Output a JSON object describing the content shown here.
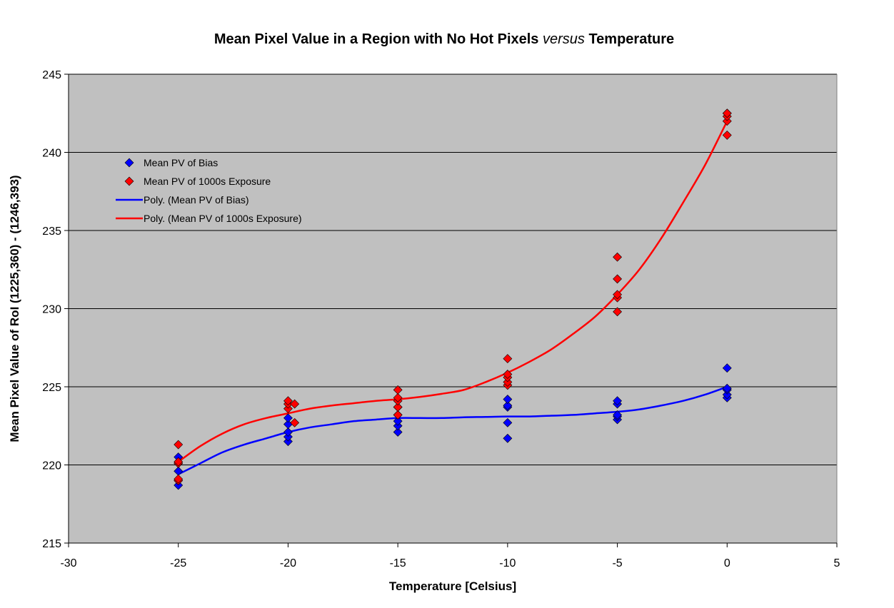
{
  "chart_data": {
    "type": "scatter",
    "title_parts": [
      "Mean Pixel Value in a Region with No Hot Pixels ",
      "versus",
      " Temperature"
    ],
    "xlabel": "Temperature [Celsius]",
    "ylabel": "Mean Pixel Value of RoI (1225,360) - (1246,393)",
    "xlim": [
      -30,
      5
    ],
    "ylim": [
      215,
      245
    ],
    "x_ticks": [
      -30,
      -25,
      -20,
      -15,
      -10,
      -5,
      0,
      5
    ],
    "y_ticks": [
      215,
      220,
      225,
      230,
      235,
      240,
      245
    ],
    "grid": "horizontal",
    "plot_background": "#c0c0c0",
    "legend_position": "top-left",
    "series": [
      {
        "name": "Mean PV of Bias",
        "kind": "markers",
        "marker": "diamond",
        "color": "#0000ff",
        "points": [
          [
            -25,
            218.7
          ],
          [
            -25,
            219.0
          ],
          [
            -25,
            219.6
          ],
          [
            -25,
            220.1
          ],
          [
            -25,
            220.5
          ],
          [
            -20,
            221.5
          ],
          [
            -20,
            221.8
          ],
          [
            -20,
            222.1
          ],
          [
            -20,
            222.6
          ],
          [
            -20,
            223.0
          ],
          [
            -15,
            222.1
          ],
          [
            -15,
            222.5
          ],
          [
            -15,
            222.8
          ],
          [
            -15,
            223.2
          ],
          [
            -15,
            223.7
          ],
          [
            -10,
            221.7
          ],
          [
            -10,
            222.7
          ],
          [
            -10,
            223.7
          ],
          [
            -10,
            223.8
          ],
          [
            -10,
            224.2
          ],
          [
            -5,
            222.9
          ],
          [
            -5,
            223.1
          ],
          [
            -5,
            223.2
          ],
          [
            -5,
            223.9
          ],
          [
            -5,
            224.1
          ],
          [
            0,
            224.3
          ],
          [
            0,
            224.5
          ],
          [
            0,
            224.8
          ],
          [
            0,
            224.9
          ],
          [
            0,
            226.2
          ]
        ]
      },
      {
        "name": "Mean PV of 1000s Exposure",
        "kind": "markers",
        "marker": "diamond",
        "color": "#ff0000",
        "points": [
          [
            -25,
            219.0
          ],
          [
            -25,
            219.1
          ],
          [
            -25,
            220.1
          ],
          [
            -25,
            220.2
          ],
          [
            -25,
            221.3
          ],
          [
            -20,
            223.6
          ],
          [
            -20,
            223.9
          ],
          [
            -20,
            224.1
          ],
          [
            -19.7,
            223.9
          ],
          [
            -19.7,
            222.7
          ],
          [
            -15,
            223.2
          ],
          [
            -15,
            223.7
          ],
          [
            -15,
            224.1
          ],
          [
            -15,
            224.3
          ],
          [
            -15,
            224.8
          ],
          [
            -10,
            225.1
          ],
          [
            -10,
            225.3
          ],
          [
            -10,
            225.6
          ],
          [
            -10,
            225.8
          ],
          [
            -10,
            226.8
          ],
          [
            -5,
            229.8
          ],
          [
            -5,
            230.7
          ],
          [
            -5,
            230.9
          ],
          [
            -5,
            231.9
          ],
          [
            -5,
            233.3
          ],
          [
            0,
            241.1
          ],
          [
            0,
            242.0
          ],
          [
            0,
            242.3
          ],
          [
            0,
            242.5
          ],
          [
            0,
            242.5
          ]
        ]
      },
      {
        "name": "Poly. (Mean PV of Bias)",
        "kind": "line",
        "color": "#0000ff",
        "points": [
          [
            -25,
            219.4
          ],
          [
            -24,
            220.1
          ],
          [
            -23,
            220.8
          ],
          [
            -22,
            221.3
          ],
          [
            -21,
            221.7
          ],
          [
            -20,
            222.1
          ],
          [
            -19,
            222.4
          ],
          [
            -18,
            222.6
          ],
          [
            -17,
            222.8
          ],
          [
            -16,
            222.9
          ],
          [
            -15,
            223.0
          ],
          [
            -14,
            223.0
          ],
          [
            -13,
            223.0
          ],
          [
            -12,
            223.05
          ],
          [
            -11,
            223.07
          ],
          [
            -10,
            223.1
          ],
          [
            -9,
            223.1
          ],
          [
            -8,
            223.15
          ],
          [
            -7,
            223.2
          ],
          [
            -6,
            223.3
          ],
          [
            -5,
            223.4
          ],
          [
            -4,
            223.55
          ],
          [
            -3,
            223.8
          ],
          [
            -2,
            224.1
          ],
          [
            -1,
            224.5
          ],
          [
            0,
            225.0
          ]
        ]
      },
      {
        "name": "Poly. (Mean PV of 1000s Exposure)",
        "kind": "line",
        "color": "#ff0000",
        "points": [
          [
            -25,
            220.2
          ],
          [
            -24,
            221.2
          ],
          [
            -23,
            222.0
          ],
          [
            -22,
            222.6
          ],
          [
            -21,
            223.0
          ],
          [
            -20,
            223.3
          ],
          [
            -19,
            223.6
          ],
          [
            -18,
            223.8
          ],
          [
            -17,
            223.95
          ],
          [
            -16,
            224.1
          ],
          [
            -15,
            224.2
          ],
          [
            -14,
            224.35
          ],
          [
            -13,
            224.55
          ],
          [
            -12,
            224.8
          ],
          [
            -11,
            225.3
          ],
          [
            -10,
            225.9
          ],
          [
            -9,
            226.6
          ],
          [
            -8,
            227.4
          ],
          [
            -7,
            228.4
          ],
          [
            -6,
            229.5
          ],
          [
            -5,
            230.9
          ],
          [
            -4,
            232.5
          ],
          [
            -3,
            234.5
          ],
          [
            -2,
            236.8
          ],
          [
            -1,
            239.2
          ],
          [
            0,
            242.0
          ]
        ]
      }
    ]
  }
}
